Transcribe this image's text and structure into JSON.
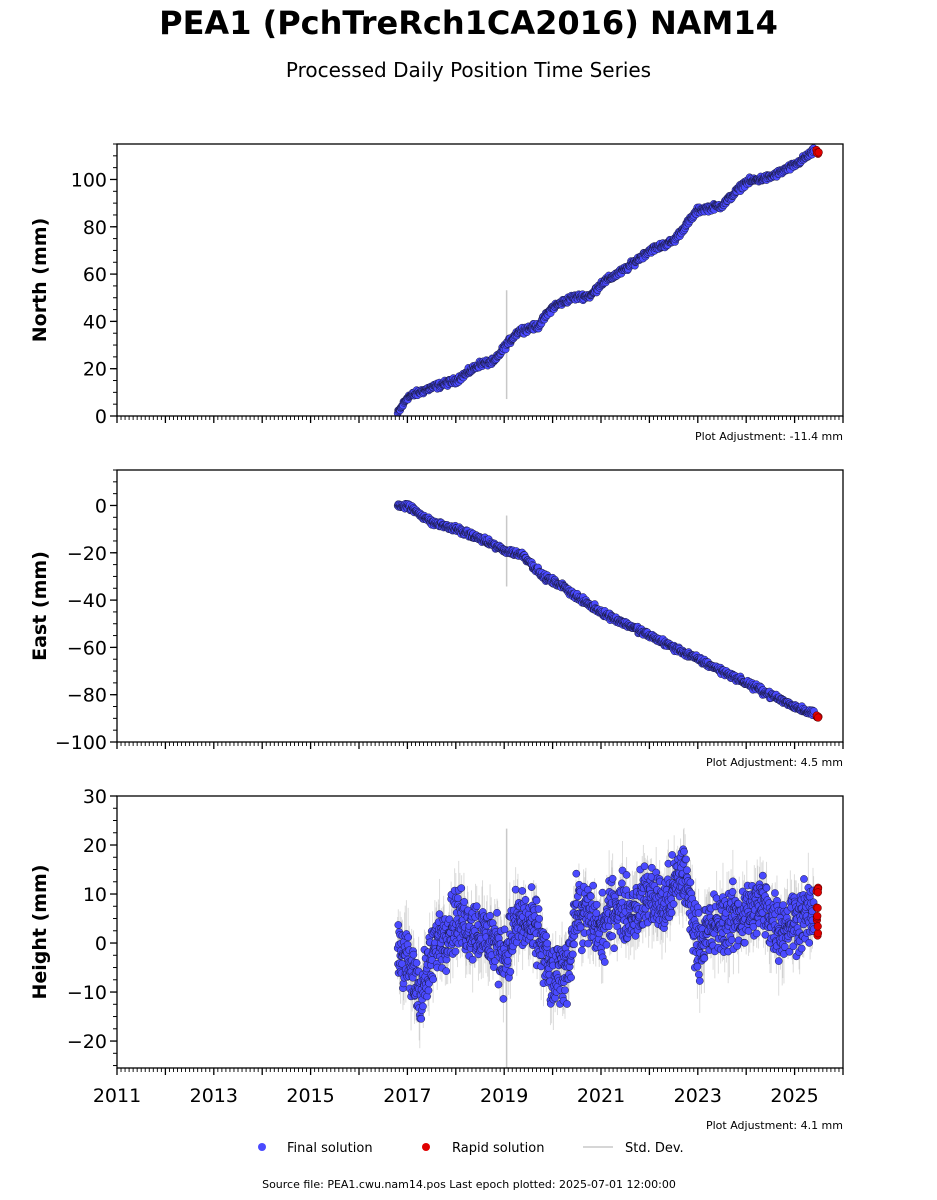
{
  "header": {
    "title": "PEA1 (PchTreRch1CA2016) NAM14",
    "subtitle": "Processed Daily Position Time Series"
  },
  "legend": {
    "final": "Final solution",
    "rapid": "Rapid solution",
    "std": "Std. Dev."
  },
  "footer": {
    "source": "Source file: PEA1.cwu.nam14.pos  Last epoch plotted: 2025-07-01 12:00:00"
  },
  "colors": {
    "final": "#4a4aff",
    "rapid": "#e00000",
    "std": "#c8c8c8"
  },
  "chart_data": [
    {
      "type": "scatter",
      "panel": "north",
      "ylabel": "North (mm)",
      "adjustment": "Plot Adjustment: -11.4 mm",
      "xlim": [
        2011.0,
        2026.0
      ],
      "ylim": [
        0,
        115
      ],
      "yticks": [
        0,
        20,
        40,
        60,
        80,
        100
      ],
      "yticklabels": [
        "0",
        "20",
        "40",
        "60",
        "80",
        "100"
      ],
      "series": [
        {
          "name": "Final solution",
          "x": [
            2016.8,
            2017.0,
            2017.5,
            2018.0,
            2018.5,
            2018.8,
            2019.0,
            2019.3,
            2019.7,
            2020.0,
            2020.4,
            2020.8,
            2021.0,
            2021.5,
            2022.0,
            2022.5,
            2023.0,
            2023.5,
            2024.0,
            2024.5,
            2025.0,
            2025.4
          ],
          "y": [
            1,
            8,
            12,
            15,
            22,
            23,
            29,
            36,
            38,
            46,
            50,
            51,
            56,
            62,
            70,
            74,
            87,
            89,
            99,
            101,
            106,
            112
          ]
        },
        {
          "name": "Rapid solution",
          "x": [
            2025.45,
            2025.5
          ],
          "y": [
            112,
            111
          ]
        }
      ]
    },
    {
      "type": "scatter",
      "panel": "east",
      "ylabel": "East (mm)",
      "adjustment": "Plot Adjustment: 4.5 mm",
      "xlim": [
        2011.0,
        2026.0
      ],
      "ylim": [
        -100,
        15
      ],
      "yticks": [
        0,
        -20,
        -40,
        -60,
        -80,
        -100
      ],
      "yticklabels": [
        "0",
        "−20",
        "−40",
        "−60",
        "−80",
        "−100"
      ],
      "series": [
        {
          "name": "Final solution",
          "x": [
            2016.8,
            2017.0,
            2017.5,
            2018.0,
            2018.5,
            2019.0,
            2019.4,
            2019.8,
            2020.2,
            2020.6,
            2021.0,
            2021.5,
            2022.0,
            2022.5,
            2023.0,
            2023.5,
            2024.0,
            2024.5,
            2025.0,
            2025.4
          ],
          "y": [
            0,
            0,
            -7,
            -10,
            -14,
            -19,
            -21,
            -30,
            -34,
            -40,
            -45,
            -50,
            -55,
            -60,
            -65,
            -70,
            -75,
            -80,
            -85,
            -88
          ]
        },
        {
          "name": "Rapid solution",
          "x": [
            2025.45,
            2025.5
          ],
          "y": [
            -89,
            -90
          ]
        }
      ]
    },
    {
      "type": "scatter",
      "panel": "height",
      "ylabel": "Height (mm)",
      "adjustment": "Plot Adjustment: 4.1 mm",
      "xlim": [
        2011.0,
        2026.0
      ],
      "ylim": [
        -25.5,
        30
      ],
      "yticks": [
        -20,
        -10,
        0,
        10,
        20,
        30
      ],
      "yticklabels": [
        "−20",
        "−10",
        "0",
        "10",
        "20",
        "30"
      ],
      "xticks": [
        2011,
        2013,
        2015,
        2017,
        2019,
        2021,
        2023,
        2025
      ],
      "xticklabels": [
        "2011",
        "2013",
        "2015",
        "2017",
        "2019",
        "2021",
        "2023",
        "2025"
      ],
      "series": [
        {
          "name": "Final solution",
          "x": [
            2016.8,
            2017.0,
            2017.3,
            2017.6,
            2018.0,
            2018.4,
            2018.8,
            2019.0,
            2019.3,
            2019.7,
            2020.0,
            2020.3,
            2020.5,
            2020.8,
            2021.0,
            2021.3,
            2021.6,
            2022.0,
            2022.3,
            2022.7,
            2023.0,
            2023.3,
            2023.7,
            2024.0,
            2024.3,
            2024.7,
            2025.0,
            2025.4
          ],
          "y": [
            0,
            -5,
            -10,
            0,
            5,
            3,
            0,
            -3,
            5,
            2,
            -8,
            -5,
            7,
            5,
            2,
            8,
            6,
            10,
            7,
            15,
            0,
            3,
            5,
            6,
            8,
            3,
            5,
            6
          ]
        },
        {
          "name": "Rapid solution",
          "x": [
            2025.45,
            2025.5
          ],
          "y": [
            5,
            8
          ]
        }
      ]
    }
  ]
}
